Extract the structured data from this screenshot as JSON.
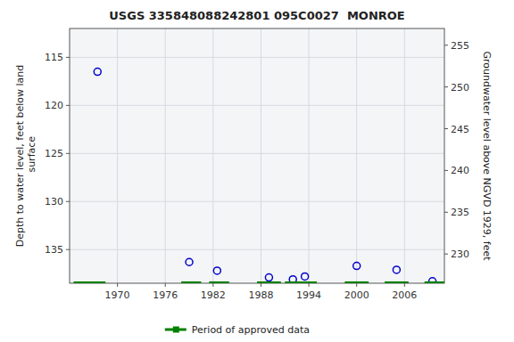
{
  "chart_data": {
    "type": "scatter",
    "title": "USGS 335848088242801 095C0027  MONROE",
    "y_label": "Depth to water level, feet below land\n surface",
    "y2_label": "Groundwater level above NGVD 1929, feet",
    "xlim": [
      1964,
      2011
    ],
    "xticks": [
      1970,
      1976,
      1982,
      1988,
      1994,
      2000,
      2006
    ],
    "ylim": [
      138.5,
      112.0
    ],
    "yticks": [
      115,
      120,
      125,
      130,
      135
    ],
    "y2lim": [
      226.5,
      257.0
    ],
    "y2ticks": [
      255,
      250,
      245,
      240,
      235,
      230
    ],
    "grid": true,
    "legend": "bottom",
    "series": [
      {
        "type": "scatter",
        "marker": "circle",
        "color": "#0000cc",
        "x": [
          1967.5,
          1979,
          1982.5,
          1989.0,
          1992.0,
          1993.5,
          2000.0,
          2005.0,
          2009.5
        ],
        "values": [
          116.5,
          136.3,
          137.2,
          137.9,
          138.1,
          137.8,
          136.7,
          137.1,
          138.3
        ]
      },
      {
        "type": "segment",
        "name": "Period of approved data",
        "color": "#008000",
        "x": [
          [
            1964.5,
            1968.5
          ],
          [
            1978.0,
            1980.5
          ],
          [
            1981.5,
            1984.0
          ],
          [
            1987.5,
            1990.5
          ],
          [
            1991.0,
            1995.0
          ],
          [
            1998.5,
            2001.5
          ],
          [
            2003.5,
            2006.5
          ],
          [
            2008.5,
            2011.0
          ]
        ],
        "values": [
          138.45,
          138.45,
          138.45,
          138.45,
          138.45,
          138.45,
          138.45,
          138.45
        ]
      }
    ]
  }
}
